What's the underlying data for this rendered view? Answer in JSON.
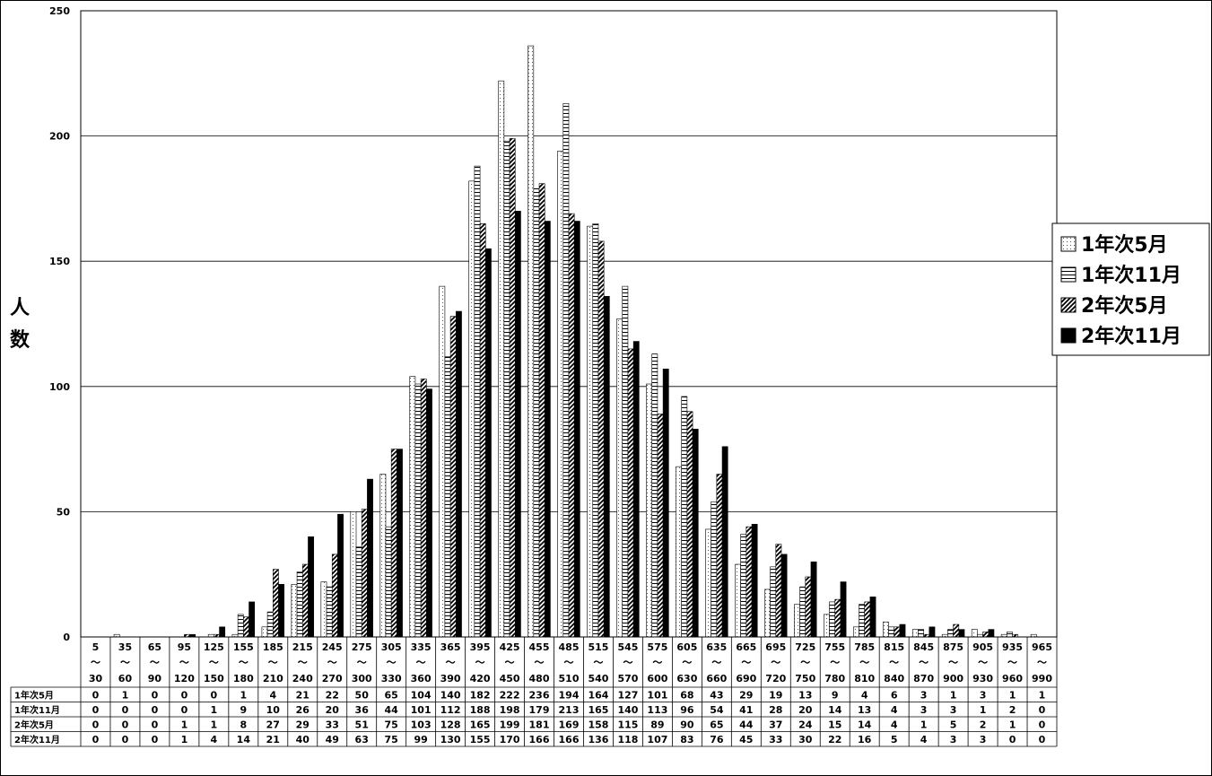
{
  "chart_data": {
    "type": "bar",
    "ylabel_chars": [
      "人",
      "数"
    ],
    "ylim": [
      0,
      250
    ],
    "yticks": [
      0,
      50,
      100,
      150,
      200,
      250
    ],
    "grid": true,
    "legend_position": "right",
    "categories": [
      {
        "top": "5",
        "mid": "～",
        "bottom": "30"
      },
      {
        "top": "35",
        "mid": "～",
        "bottom": "60"
      },
      {
        "top": "65",
        "mid": "～",
        "bottom": "90"
      },
      {
        "top": "95",
        "mid": "～",
        "bottom": "120"
      },
      {
        "top": "125",
        "mid": "～",
        "bottom": "150"
      },
      {
        "top": "155",
        "mid": "～",
        "bottom": "180"
      },
      {
        "top": "185",
        "mid": "～",
        "bottom": "210"
      },
      {
        "top": "215",
        "mid": "～",
        "bottom": "240"
      },
      {
        "top": "245",
        "mid": "～",
        "bottom": "270"
      },
      {
        "top": "275",
        "mid": "～",
        "bottom": "300"
      },
      {
        "top": "305",
        "mid": "～",
        "bottom": "330"
      },
      {
        "top": "335",
        "mid": "～",
        "bottom": "360"
      },
      {
        "top": "365",
        "mid": "～",
        "bottom": "390"
      },
      {
        "top": "395",
        "mid": "～",
        "bottom": "420"
      },
      {
        "top": "425",
        "mid": "～",
        "bottom": "450"
      },
      {
        "top": "455",
        "mid": "～",
        "bottom": "480"
      },
      {
        "top": "485",
        "mid": "～",
        "bottom": "510"
      },
      {
        "top": "515",
        "mid": "～",
        "bottom": "540"
      },
      {
        "top": "545",
        "mid": "～",
        "bottom": "570"
      },
      {
        "top": "575",
        "mid": "～",
        "bottom": "600"
      },
      {
        "top": "605",
        "mid": "～",
        "bottom": "630"
      },
      {
        "top": "635",
        "mid": "～",
        "bottom": "660"
      },
      {
        "top": "665",
        "mid": "～",
        "bottom": "690"
      },
      {
        "top": "695",
        "mid": "～",
        "bottom": "720"
      },
      {
        "top": "725",
        "mid": "～",
        "bottom": "750"
      },
      {
        "top": "755",
        "mid": "～",
        "bottom": "780"
      },
      {
        "top": "785",
        "mid": "～",
        "bottom": "810"
      },
      {
        "top": "815",
        "mid": "～",
        "bottom": "840"
      },
      {
        "top": "845",
        "mid": "～",
        "bottom": "870"
      },
      {
        "top": "875",
        "mid": "～",
        "bottom": "900"
      },
      {
        "top": "905",
        "mid": "～",
        "bottom": "930"
      },
      {
        "top": "935",
        "mid": "～",
        "bottom": "960"
      },
      {
        "top": "965",
        "mid": "～",
        "bottom": "990"
      }
    ],
    "series": [
      {
        "name": "1年次5月",
        "pattern": "dotted",
        "values": [
          0,
          1,
          0,
          0,
          0,
          1,
          4,
          21,
          22,
          50,
          65,
          104,
          140,
          182,
          222,
          236,
          194,
          164,
          127,
          101,
          68,
          43,
          29,
          19,
          13,
          9,
          4,
          6,
          3,
          1,
          3,
          1,
          1
        ]
      },
      {
        "name": "1年次11月",
        "pattern": "horizontal",
        "values": [
          0,
          0,
          0,
          0,
          1,
          9,
          10,
          26,
          20,
          36,
          44,
          101,
          112,
          188,
          198,
          179,
          213,
          165,
          140,
          113,
          96,
          54,
          41,
          28,
          20,
          14,
          13,
          4,
          3,
          3,
          1,
          2,
          0
        ]
      },
      {
        "name": "2年次5月",
        "pattern": "diagonal",
        "values": [
          0,
          0,
          0,
          1,
          1,
          8,
          27,
          29,
          33,
          51,
          75,
          103,
          128,
          165,
          199,
          181,
          169,
          158,
          115,
          89,
          90,
          65,
          44,
          37,
          24,
          15,
          14,
          4,
          1,
          5,
          2,
          1,
          0
        ]
      },
      {
        "name": "2年次11月",
        "pattern": "solid",
        "values": [
          0,
          0,
          0,
          1,
          4,
          14,
          21,
          40,
          49,
          63,
          75,
          99,
          130,
          155,
          170,
          166,
          166,
          136,
          118,
          107,
          83,
          76,
          45,
          33,
          30,
          22,
          16,
          5,
          4,
          3,
          3,
          0,
          0
        ]
      }
    ],
    "table_labels": [
      "1年次5月",
      "1年次11月",
      "2年次5月",
      "2年次11月"
    ]
  }
}
